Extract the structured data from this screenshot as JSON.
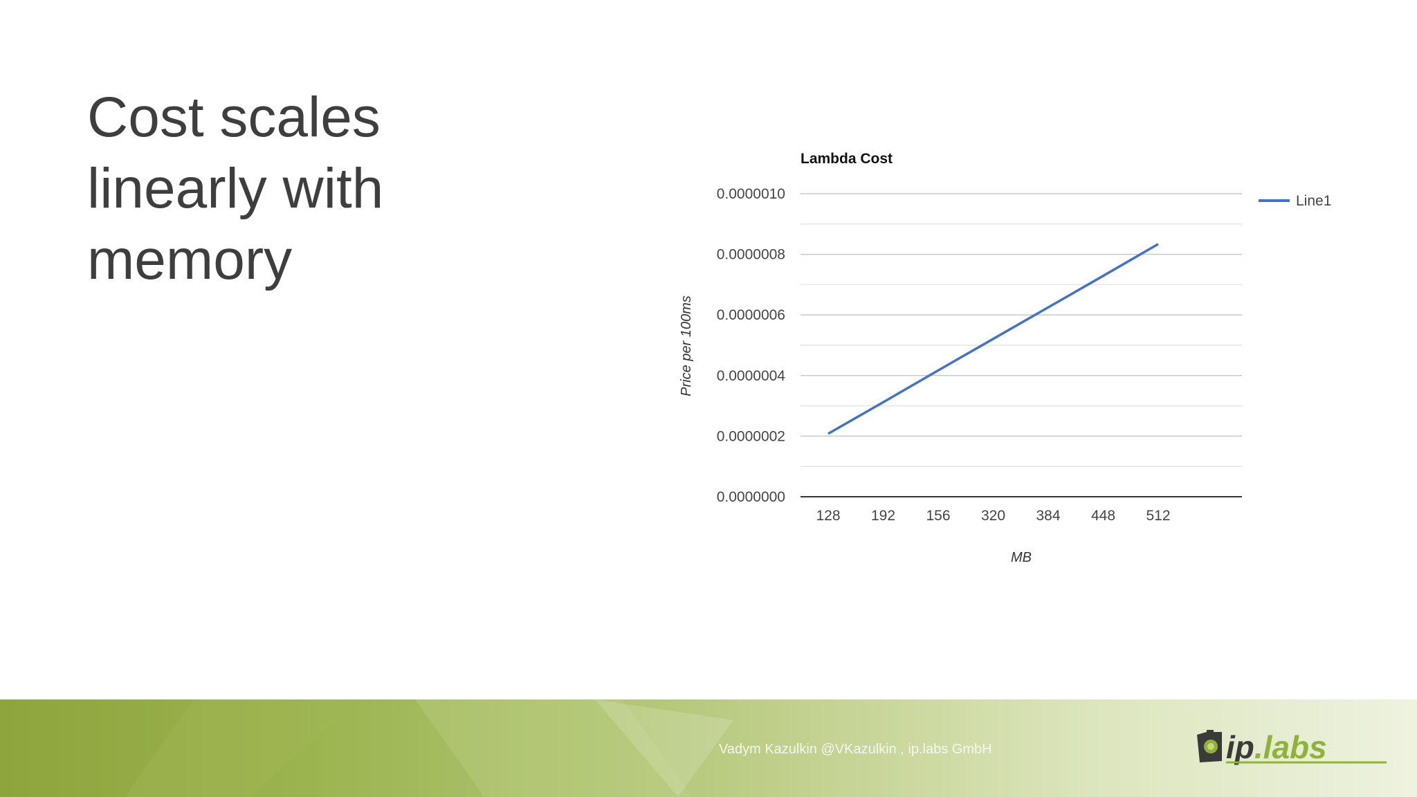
{
  "slide": {
    "title_lines": [
      "Cost scales",
      "linearly with",
      "memory"
    ]
  },
  "footer": {
    "credit": "Vadym Kazulkin @VKazulkin , ip.labs GmbH",
    "logo_text": "ip.labs",
    "colors": {
      "green_dark": "#8ea43c",
      "green_light": "#eef2df",
      "logo_dark": "#3a3a3a",
      "logo_green": "#8fb23a"
    }
  },
  "chart_data": {
    "type": "line",
    "title": "Lambda Cost",
    "xlabel": "MB",
    "ylabel": "Price per 100ms",
    "categories": [
      "128",
      "192",
      "156",
      "320",
      "384",
      "448",
      "512"
    ],
    "series": [
      {
        "name": "Line1",
        "color": "#4472c4",
        "values": [
          2.08e-07,
          3.12e-07,
          4.17e-07,
          5.21e-07,
          6.25e-07,
          7.29e-07,
          8.34e-07
        ]
      }
    ],
    "ylim": [
      0,
      1e-06
    ],
    "yticks": [
      "0.0000000",
      "0.0000002",
      "0.0000004",
      "0.0000006",
      "0.0000008",
      "0.0000010"
    ],
    "grid": true,
    "legend_position": "right"
  }
}
